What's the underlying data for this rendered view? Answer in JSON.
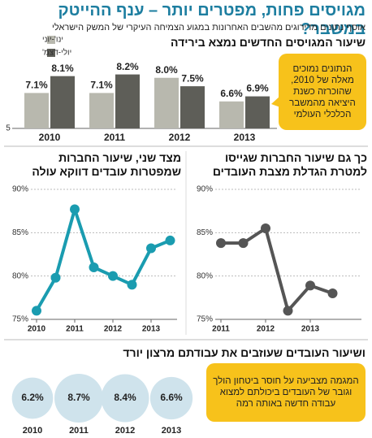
{
  "header": {
    "title": "מגויסים פחות, מפטרים יותר – ענף ההייטק במשבר?",
    "subtitle": "אוסף נתונים מדירוגים מהשבים האחרונות במגוע הצמיחה העיקרי של המשק הישראלי"
  },
  "chart_data": [
    {
      "type": "bar",
      "title": "שיעור המגויסים החדשים נמצא בירידה",
      "categories": [
        "2010",
        "2011",
        "2012",
        "2013"
      ],
      "series": [
        {
          "name": "ינו'-יוני",
          "color": "#b8b8ae",
          "values": [
            7.1,
            7.1,
            8.0,
            6.6
          ],
          "value_labels": [
            "7.1%",
            "7.1%",
            "8.0%",
            "6.6%"
          ]
        },
        {
          "name": "יולי-דצמ'",
          "color": "#5e5e58",
          "values": [
            8.1,
            8.2,
            7.5,
            6.9
          ],
          "value_labels": [
            "8.1%",
            "8.2%",
            "7.5%",
            "6.9%"
          ]
        }
      ],
      "ylim": [
        5,
        9
      ],
      "yticks": [
        5
      ],
      "annotation": "הנתונים נמוכים מאלה של 2010, שהוכרזה כשנת היציאה מהמשבר הכלכלי העולמי"
    },
    {
      "type": "line",
      "title": "כך גם שיעור החברות שגייסו למטרת הגדלת מצבת העובדים",
      "categories": [
        "2011",
        null,
        "2012",
        null,
        "2013",
        null
      ],
      "values": [
        83.8,
        83.8,
        85.5,
        76,
        78.9,
        78
      ],
      "color": "#555555",
      "ylim": [
        75,
        90
      ],
      "yticks": [
        {
          "value": 75,
          "label": "75%"
        },
        {
          "value": 80,
          "label": "80%"
        },
        {
          "value": 85,
          "label": "85%"
        },
        {
          "value": 90,
          "label": "90%"
        }
      ],
      "grid": true
    },
    {
      "type": "line",
      "title": "מצד שני, שיעור החברות שמפטרות עובדים דווקא עולה",
      "categories": [
        "2010",
        null,
        "2011",
        null,
        "2012",
        null,
        "2013",
        null
      ],
      "values": [
        76,
        79.8,
        87.7,
        81,
        80,
        79,
        83.2,
        84.1
      ],
      "color": "#1a9cb0",
      "ylim": [
        75,
        90
      ],
      "yticks": [
        {
          "value": 75,
          "label": "75%"
        },
        {
          "value": 80,
          "label": "80%"
        },
        {
          "value": 85,
          "label": "85%"
        },
        {
          "value": 90,
          "label": "90%"
        }
      ],
      "grid": true
    },
    {
      "type": "bubble",
      "title": "ושיעור העובדים שעוזבים את עבודתם מרצון יורד",
      "categories": [
        "2010",
        "2011",
        "2012",
        "2013"
      ],
      "values": [
        6.2,
        8.7,
        8.4,
        6.6
      ],
      "value_labels": [
        "6.2%",
        "8.7%",
        "8.4%",
        "6.6%"
      ],
      "color": "#cfe3ec",
      "annotation": "המגמה מצביעה על חוסר ביטחון הולך וגובר של העובדים ביכולתם למצוא עבודה חדשה באותה רמה"
    }
  ]
}
